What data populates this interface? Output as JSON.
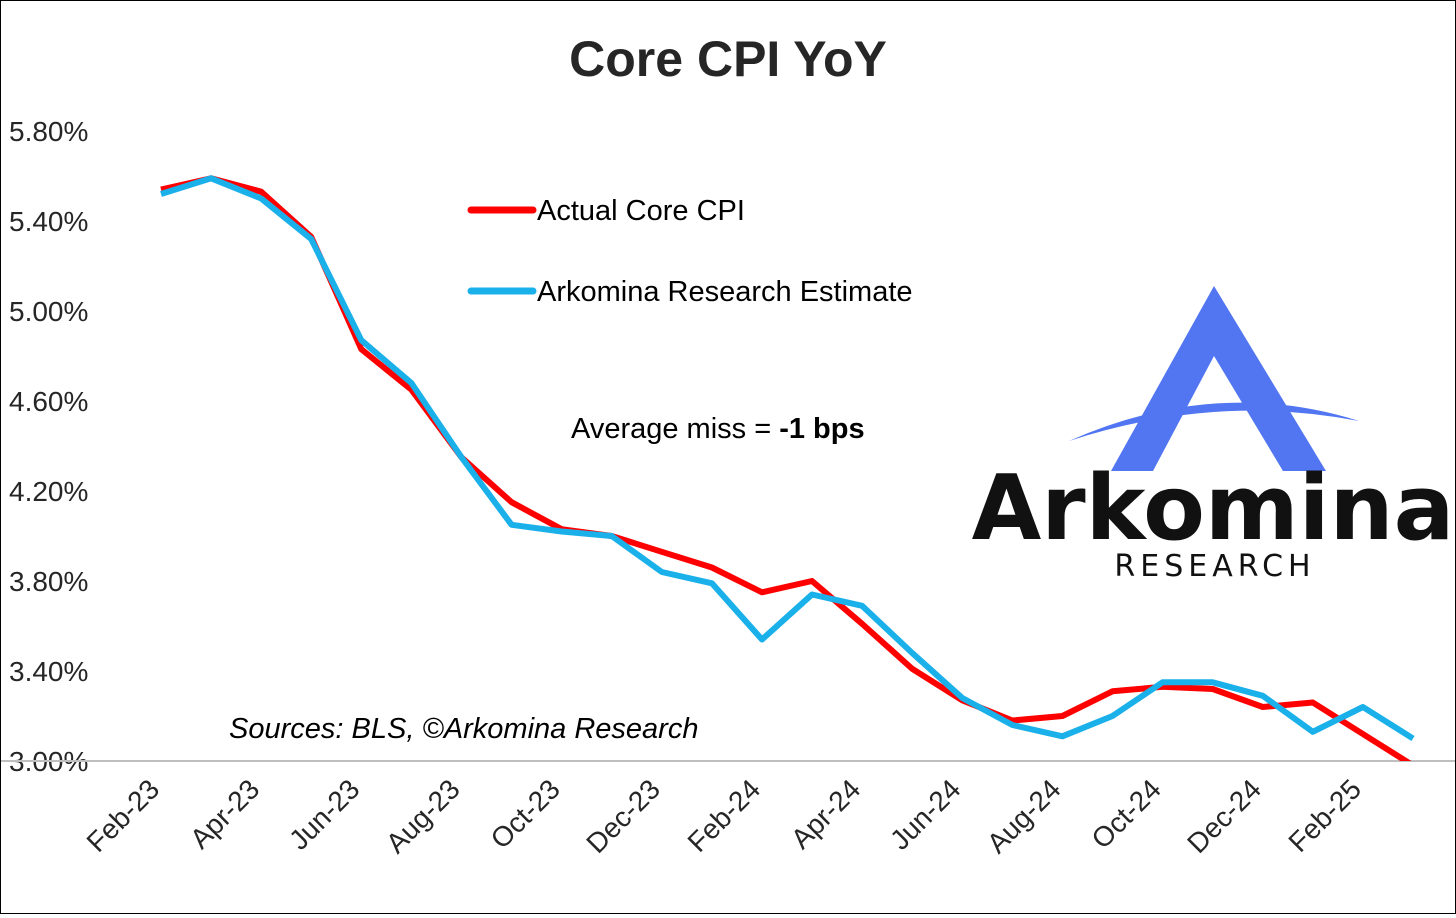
{
  "chart_data": {
    "type": "line",
    "title": "Core CPI YoY",
    "x": [
      "Feb-23",
      "Mar-23",
      "Apr-23",
      "May-23",
      "Jun-23",
      "Jul-23",
      "Aug-23",
      "Sep-23",
      "Oct-23",
      "Nov-23",
      "Dec-23",
      "Jan-24",
      "Feb-24",
      "Mar-24",
      "Apr-24",
      "May-24",
      "Jun-24",
      "Jul-24",
      "Aug-24",
      "Sep-24",
      "Oct-24",
      "Nov-24",
      "Dec-24",
      "Jan-25",
      "Feb-25",
      "Mar-25"
    ],
    "x_tick_labels": [
      "Feb-23",
      "Apr-23",
      "Jun-23",
      "Aug-23",
      "Oct-23",
      "Dec-23",
      "Feb-24",
      "Apr-24",
      "Jun-24",
      "Aug-24",
      "Oct-24",
      "Dec-24",
      "Feb-25"
    ],
    "ylim": [
      3.0,
      5.8
    ],
    "y_ticks": [
      "3.00%",
      "3.40%",
      "3.80%",
      "4.20%",
      "4.60%",
      "5.00%",
      "5.40%",
      "5.80%"
    ],
    "y_tick_values": [
      3.0,
      3.4,
      3.8,
      4.2,
      4.6,
      5.0,
      5.4,
      5.8
    ],
    "series": [
      {
        "name": "Actual Core CPI",
        "color": "#ff0000",
        "values": [
          5.54,
          5.59,
          5.53,
          5.33,
          4.83,
          4.65,
          4.35,
          4.15,
          4.03,
          4.0,
          3.93,
          3.86,
          3.75,
          3.8,
          3.61,
          3.41,
          3.27,
          3.18,
          3.2,
          3.31,
          3.33,
          3.32,
          3.24,
          3.26,
          3.12,
          2.98
        ]
      },
      {
        "name": "Arkomina Research Estimate",
        "color": "#1ab0ea",
        "values": [
          5.52,
          5.59,
          5.5,
          5.32,
          4.87,
          4.68,
          4.35,
          4.05,
          4.02,
          4.0,
          3.84,
          3.79,
          3.54,
          3.74,
          3.69,
          3.48,
          3.28,
          3.16,
          3.11,
          3.2,
          3.35,
          3.35,
          3.29,
          3.13,
          3.24,
          3.1
        ]
      }
    ],
    "legend_position": "top-center",
    "grid": false
  },
  "annotation": {
    "prefix": "Average miss = ",
    "value": "-1 bps"
  },
  "source_note": "Sources: BLS, ©Arkomina Research",
  "logo": {
    "word": "Arkomina",
    "sub": "RESEARCH",
    "color": "#5276f2"
  }
}
